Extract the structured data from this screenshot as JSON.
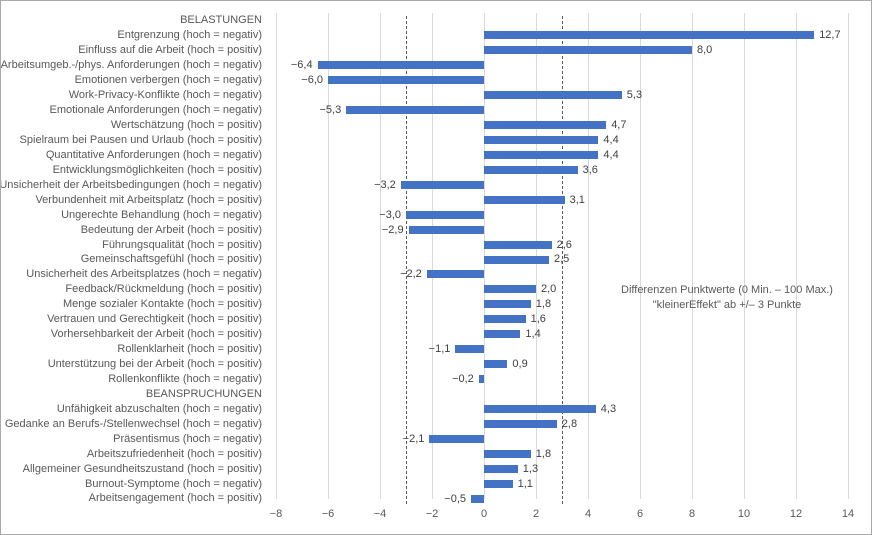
{
  "chart_data": {
    "type": "bar",
    "orientation": "horizontal",
    "bar_color": "#4472C4",
    "gridline_color": "#D9D9D9",
    "reference_line_color": "#595959",
    "x_axis": {
      "min": -8,
      "max": 14,
      "tick_step": 2,
      "ticks": [
        -8,
        -6,
        -4,
        -2,
        0,
        2,
        4,
        6,
        8,
        10,
        12,
        14
      ],
      "tick_labels": [
        "−8",
        "−6",
        "−4",
        "−2",
        "0",
        "2",
        "4",
        "6",
        "8",
        "10",
        "12",
        "14"
      ]
    },
    "reference_lines": [
      -3,
      3
    ],
    "annotation": {
      "line1": "Differenzen Punktwerte (0 Min. – 100 Max.)",
      "line2": "\"kleinerEffekt\" ab +/– 3 Punkte"
    },
    "rows": [
      {
        "label": "BELASTUNGEN",
        "header": true
      },
      {
        "label": "Entgrenzung (hoch = negativ)",
        "value": 12.7,
        "value_label": "12,7"
      },
      {
        "label": "Einfluss auf die Arbeit (hoch = positiv)",
        "value": 8.0,
        "value_label": "8,0"
      },
      {
        "label": "Arbeitsumgeb.-/phys. Anforderungen (hoch = negativ)",
        "value": -6.4,
        "value_label": "−6,4"
      },
      {
        "label": "Emotionen verbergen (hoch = negativ)",
        "value": -6.0,
        "value_label": "−6,0"
      },
      {
        "label": "Work-Privacy-Konflikte (hoch = negativ)",
        "value": 5.3,
        "value_label": "5,3"
      },
      {
        "label": "Emotionale Anforderungen (hoch = negativ)",
        "value": -5.3,
        "value_label": "−5,3"
      },
      {
        "label": "Wertschätzung (hoch = positiv)",
        "value": 4.7,
        "value_label": "4,7"
      },
      {
        "label": "Spielraum bei Pausen und Urlaub (hoch = positiv)",
        "value": 4.4,
        "value_label": "4,4"
      },
      {
        "label": "Quantitative Anforderungen (hoch = negativ)",
        "value": 4.4,
        "value_label": "4,4"
      },
      {
        "label": "Entwicklungsmöglichkeiten (hoch = positiv)",
        "value": 3.6,
        "value_label": "3,6"
      },
      {
        "label": "Unsicherheit der Arbeitsbedingungen (hoch = negativ)",
        "value": -3.2,
        "value_label": "−3,2"
      },
      {
        "label": "Verbundenheit mit Arbeitsplatz (hoch = positiv)",
        "value": 3.1,
        "value_label": "3,1"
      },
      {
        "label": "Ungerechte Behandlung (hoch = negativ)",
        "value": -3.0,
        "value_label": "−3,0"
      },
      {
        "label": "Bedeutung der Arbeit (hoch = positiv)",
        "value": -2.9,
        "value_label": "−2,9"
      },
      {
        "label": "Führungsqualität (hoch = positiv)",
        "value": 2.6,
        "value_label": "2,6"
      },
      {
        "label": "Gemeinschaftsgefühl (hoch = positiv)",
        "value": 2.5,
        "value_label": "2,5"
      },
      {
        "label": "Unsicherheit des Arbeitsplatzes (hoch = negativ)",
        "value": -2.2,
        "value_label": "−2,2"
      },
      {
        "label": "Feedback/Rückmeldung (hoch = positiv)",
        "value": 2.0,
        "value_label": "2,0"
      },
      {
        "label": "Menge sozialer Kontakte (hoch = positiv)",
        "value": 1.8,
        "value_label": "1,8"
      },
      {
        "label": "Vertrauen und Gerechtigkeit (hoch = positiv)",
        "value": 1.6,
        "value_label": "1,6"
      },
      {
        "label": "Vorhersehbarkeit der Arbeit (hoch = positiv)",
        "value": 1.4,
        "value_label": "1,4"
      },
      {
        "label": "Rollenklarheit (hoch = positiv)",
        "value": -1.1,
        "value_label": "−1,1"
      },
      {
        "label": "Unterstützung bei der Arbeit (hoch = positiv)",
        "value": 0.9,
        "value_label": "0,9"
      },
      {
        "label": "Rollenkonflikte (hoch = negativ)",
        "value": -0.2,
        "value_label": "−0,2"
      },
      {
        "label": "BEANSPRUCHUNGEN",
        "header": true
      },
      {
        "label": "Unfähigkeit abzuschalten (hoch = negativ)",
        "value": 4.3,
        "value_label": "4,3"
      },
      {
        "label": "Gedanke an Berufs-/Stellenwechsel (hoch = negativ)",
        "value": 2.8,
        "value_label": "2,8"
      },
      {
        "label": "Präsentismus (hoch = negativ)",
        "value": -2.1,
        "value_label": "−2,1"
      },
      {
        "label": "Arbeitszufriedenheit (hoch = positiv)",
        "value": 1.8,
        "value_label": "1,8"
      },
      {
        "label": "Allgemeiner Gesundheitszustand (hoch = positiv)",
        "value": 1.3,
        "value_label": "1,3"
      },
      {
        "label": "Burnout-Symptome (hoch = negativ)",
        "value": 1.1,
        "value_label": "1,1"
      },
      {
        "label": "Arbeitsengagement (hoch = positiv)",
        "value": -0.5,
        "value_label": "−0,5"
      }
    ]
  }
}
